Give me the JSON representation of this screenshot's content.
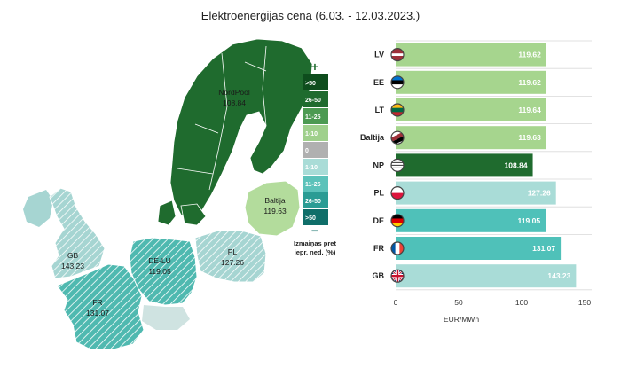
{
  "title": "Elektroenerģijas cena (6.03. - 12.03.2023.)",
  "map": {
    "regions": [
      {
        "name": "NordPool",
        "value": "108.84"
      },
      {
        "name": "Baltija",
        "value": "119.63"
      },
      {
        "name": "GB",
        "value": "143.23"
      },
      {
        "name": "DE-LU",
        "value": "119.05"
      },
      {
        "name": "PL",
        "value": "127.26"
      },
      {
        "name": "FR",
        "value": "131.07"
      }
    ],
    "legend": {
      "plus": "+",
      "minus": "−",
      "items": [
        ">50",
        "26-50",
        "11-25",
        "1-10",
        "0",
        "1-10",
        "11-25",
        "26-50",
        ">50"
      ],
      "colors": [
        "#0e4d1d",
        "#1f6b2e",
        "#4c9a52",
        "#9fd08c",
        "#b0b0b0",
        "#a9dcd7",
        "#5cc2ba",
        "#2a9c94",
        "#0f6e69"
      ],
      "caption_line1": "Izmaiņas pret",
      "caption_line2": "iepr. ned. (%)"
    },
    "colors": {
      "nordpool": "#1f6b2e",
      "baltija": "#b3dc9c",
      "gb": "#a6d5d2",
      "continental": "#4fb9b0",
      "land": "#9ec7c4"
    }
  },
  "chart_data": {
    "type": "bar",
    "orientation": "horizontal",
    "title": "Elektroenerģijas cena (6.03. - 12.03.2023.)",
    "categories": [
      "LV",
      "EE",
      "LT",
      "Baltija",
      "NP",
      "PL",
      "DE",
      "FR",
      "GB"
    ],
    "values": [
      119.62,
      119.62,
      119.64,
      119.63,
      108.84,
      127.26,
      119.05,
      131.07,
      143.23
    ],
    "labels": [
      "119.62",
      "119.62",
      "119.64",
      "119.63",
      "108.84",
      "127.26",
      "119.05",
      "131.07",
      "143.23"
    ],
    "bar_colors": [
      "#a6d58e",
      "#a6d58e",
      "#a6d58e",
      "#a6d58e",
      "#1f6b2e",
      "#a9dcd7",
      "#4fc1b9",
      "#4fc1b9",
      "#a9dcd7"
    ],
    "xlabel": "EUR/MWh",
    "xlim": [
      0,
      150
    ],
    "xticks": [
      0,
      50,
      100,
      150
    ],
    "grid": "horizontal-lines",
    "flags": [
      "lv-flag",
      "ee-flag",
      "lt-flag",
      "baltic-flag",
      "nordpool-logo",
      "pl-flag",
      "de-flag",
      "fr-flag",
      "gb-flag"
    ]
  }
}
